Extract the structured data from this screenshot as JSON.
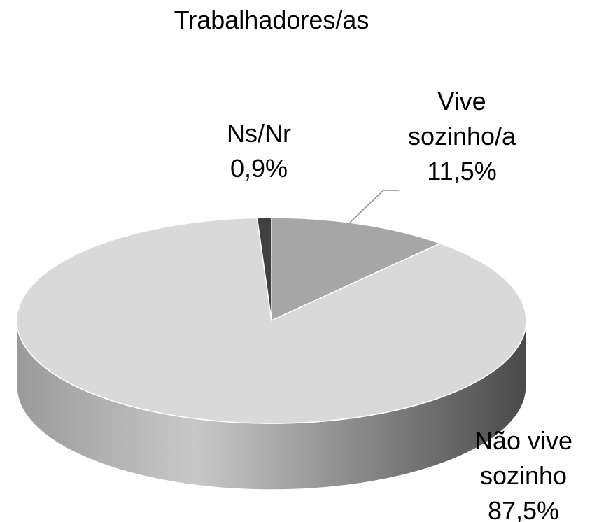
{
  "chart_data": {
    "type": "pie",
    "title": "Trabalhadores/as",
    "categories": [
      "Vive sozinho/a",
      "Não vive sozinho",
      "Ns/Nr"
    ],
    "values": [
      11.5,
      87.5,
      0.9
    ],
    "value_labels": [
      "11,5%",
      "87,5%",
      "0,9%"
    ],
    "colors": [
      "#a6a6a6",
      "#d9d9d9",
      "#404040"
    ]
  }
}
